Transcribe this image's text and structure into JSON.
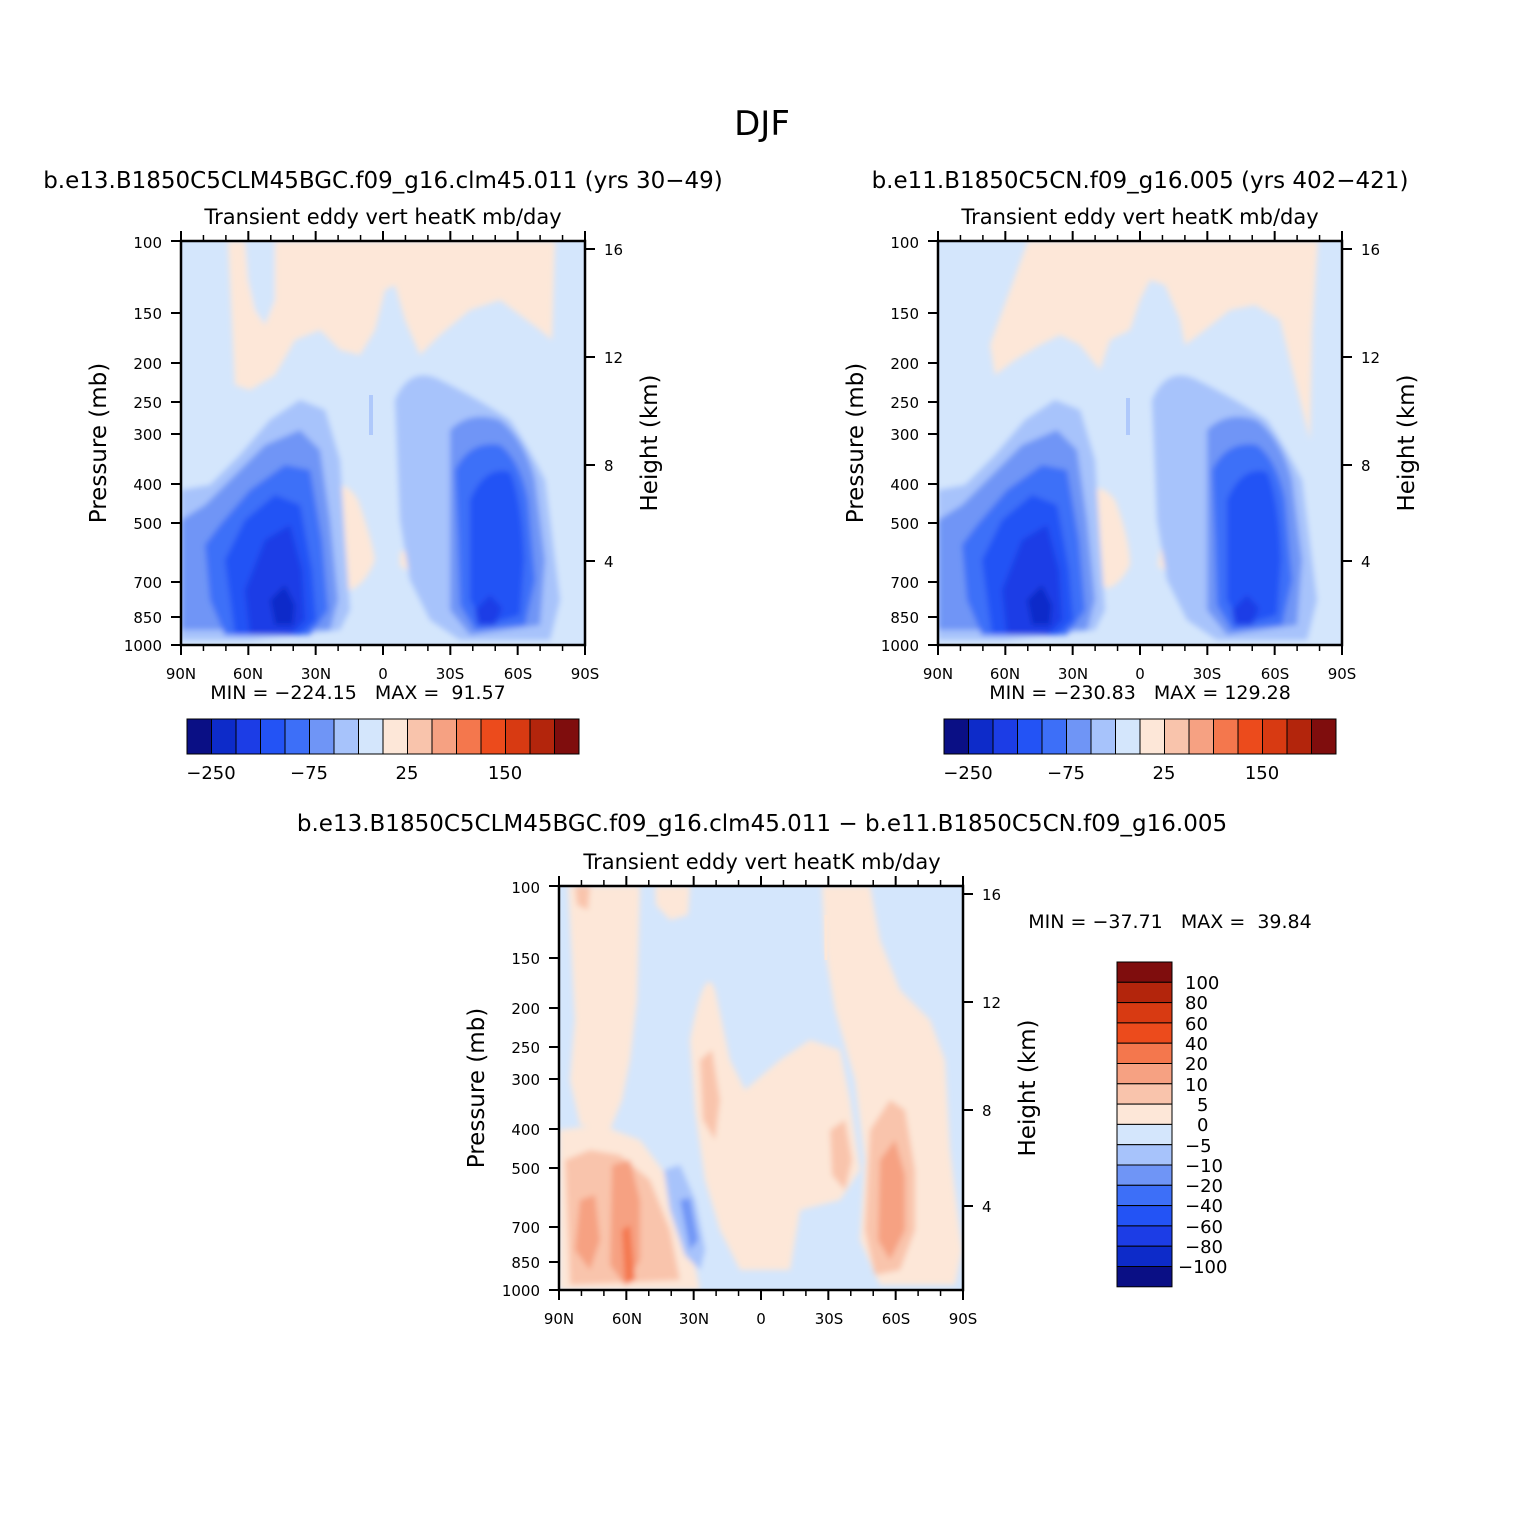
{
  "title": "DJF",
  "chart_data": [
    {
      "type": "heatmap",
      "case_title": "b.e13.B1850C5CLM45BGC.f09_g16.clm45.011 (yrs 30-49)",
      "title": "Transient eddy vert heatK mb/day",
      "xlabel": "",
      "ylabel": "Pressure (mb)",
      "y2label": "Height (km)",
      "x_ticks": [
        "90N",
        "60N",
        "30N",
        "0",
        "30S",
        "60S",
        "90S"
      ],
      "y_ticks": [
        "100",
        "150",
        "200",
        "250",
        "300",
        "400",
        "500",
        "700",
        "850",
        "1000"
      ],
      "y2_ticks": [
        "16",
        "12",
        "8",
        "4"
      ],
      "ylim": [
        1000,
        100
      ],
      "stats": "MIN = -224.15   MAX =  91.57",
      "colorbar": {
        "orientation": "horizontal",
        "labels": [
          "-250",
          "-75",
          "25",
          "150"
        ],
        "colors": [
          "#0a0f85",
          "#0d2bc9",
          "#1c3de6",
          "#2353f5",
          "#3d6ff8",
          "#6f95f6",
          "#a7c3fb",
          "#d4e6fc",
          "#fde7d8",
          "#f9c4ac",
          "#f6a182",
          "#f4774d",
          "#ec4b1c",
          "#d83a12",
          "#b3250c",
          "#7f0d0d"
        ]
      }
    },
    {
      "type": "heatmap",
      "case_title": "b.e11.B1850C5CN.f09_g16.005 (yrs 402-421)",
      "title": "Transient eddy vert heatK mb/day",
      "xlabel": "",
      "ylabel": "Pressure (mb)",
      "y2label": "Height (km)",
      "x_ticks": [
        "90N",
        "60N",
        "30N",
        "0",
        "30S",
        "60S",
        "90S"
      ],
      "y_ticks": [
        "100",
        "150",
        "200",
        "250",
        "300",
        "400",
        "500",
        "700",
        "850",
        "1000"
      ],
      "y2_ticks": [
        "16",
        "12",
        "8",
        "4"
      ],
      "ylim": [
        1000,
        100
      ],
      "stats": "MIN = -230.83   MAX = 129.28",
      "colorbar": {
        "orientation": "horizontal",
        "labels": [
          "-250",
          "-75",
          "25",
          "150"
        ],
        "colors": [
          "#0a0f85",
          "#0d2bc9",
          "#1c3de6",
          "#2353f5",
          "#3d6ff8",
          "#6f95f6",
          "#a7c3fb",
          "#d4e6fc",
          "#fde7d8",
          "#f9c4ac",
          "#f6a182",
          "#f4774d",
          "#ec4b1c",
          "#d83a12",
          "#b3250c",
          "#7f0d0d"
        ]
      }
    },
    {
      "type": "heatmap",
      "case_title": "b.e13.B1850C5CLM45BGC.f09_g16.clm45.011 - b.e11.B1850C5CN.f09_g16.005",
      "title": "Transient eddy vert heatK mb/day",
      "xlabel": "",
      "ylabel": "Pressure (mb)",
      "y2label": "Height (km)",
      "x_ticks": [
        "90N",
        "60N",
        "30N",
        "0",
        "30S",
        "60S",
        "90S"
      ],
      "y_ticks": [
        "100",
        "150",
        "200",
        "250",
        "300",
        "400",
        "500",
        "700",
        "850",
        "1000"
      ],
      "y2_ticks": [
        "16",
        "12",
        "8",
        "4"
      ],
      "ylim": [
        1000,
        100
      ],
      "stats": "MIN = -37.71   MAX =  39.84",
      "colorbar": {
        "orientation": "vertical",
        "labels": [
          "100",
          "80",
          "60",
          "40",
          "20",
          "10",
          "5",
          "0",
          "-5",
          "-10",
          "-20",
          "-40",
          "-60",
          "-80",
          "-100"
        ],
        "colors": [
          "#7f0d0d",
          "#b3250c",
          "#d83a12",
          "#ec4b1c",
          "#f4774d",
          "#f6a182",
          "#f9c4ac",
          "#fde7d8",
          "#d4e6fc",
          "#a7c3fb",
          "#6f95f6",
          "#3d6ff8",
          "#2353f5",
          "#1c3de6",
          "#0d2bc9",
          "#0a0f85"
        ]
      }
    }
  ]
}
